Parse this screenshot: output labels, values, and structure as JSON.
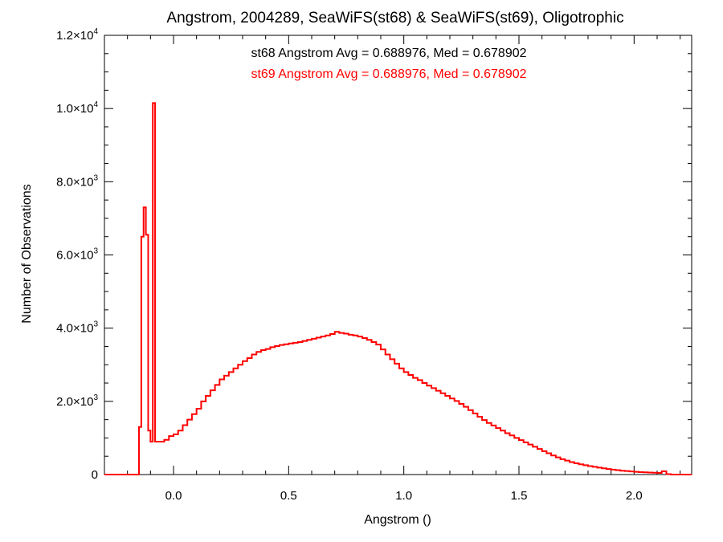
{
  "chart_data": {
    "type": "step-histogram",
    "title": "Angstrom, 2004289, SeaWiFS(st68) & SeaWiFS(st69), Oligotrophic",
    "xlabel": "Angstrom ()",
    "ylabel": "Number of Observations",
    "xlim": [
      -0.3,
      2.25
    ],
    "ylim": [
      0,
      12000
    ],
    "xticks": [
      0.0,
      0.5,
      1.0,
      1.5,
      2.0
    ],
    "xtick_labels": [
      "0.0",
      "0.5",
      "1.0",
      "1.5",
      "2.0"
    ],
    "yticks": [
      {
        "value": 0,
        "mant": "0",
        "exp": ""
      },
      {
        "value": 2000,
        "mant": "2.0×10",
        "exp": "3"
      },
      {
        "value": 4000,
        "mant": "4.0×10",
        "exp": "3"
      },
      {
        "value": 6000,
        "mant": "6.0×10",
        "exp": "3"
      },
      {
        "value": 8000,
        "mant": "8.0×10",
        "exp": "3"
      },
      {
        "value": 10000,
        "mant": "1.0×10",
        "exp": "4"
      },
      {
        "value": 12000,
        "mant": "1.2×10",
        "exp": "4"
      }
    ],
    "annotations": [
      {
        "text": "st68 Angstrom Avg = 0.688976, Med = 0.678902",
        "color": "#000000"
      },
      {
        "text": "st69 Angstrom Avg = 0.688976, Med = 0.678902",
        "color": "#ff0000"
      }
    ],
    "series": [
      {
        "color": "#ff0000",
        "bin_width": 0.01,
        "points": [
          [
            -0.3,
            0
          ],
          [
            -0.16,
            0
          ],
          [
            -0.15,
            1300
          ],
          [
            -0.14,
            6500
          ],
          [
            -0.13,
            7300
          ],
          [
            -0.12,
            6550
          ],
          [
            -0.11,
            1200
          ],
          [
            -0.1,
            900
          ],
          [
            -0.09,
            10150
          ],
          [
            -0.08,
            900
          ],
          [
            -0.06,
            900
          ],
          [
            -0.04,
            950
          ],
          [
            -0.02,
            1050
          ],
          [
            0.0,
            1100
          ],
          [
            0.02,
            1200
          ],
          [
            0.04,
            1350
          ],
          [
            0.06,
            1500
          ],
          [
            0.08,
            1650
          ],
          [
            0.1,
            1800
          ],
          [
            0.12,
            2000
          ],
          [
            0.14,
            2150
          ],
          [
            0.16,
            2300
          ],
          [
            0.18,
            2450
          ],
          [
            0.2,
            2600
          ],
          [
            0.22,
            2700
          ],
          [
            0.24,
            2800
          ],
          [
            0.26,
            2900
          ],
          [
            0.28,
            3000
          ],
          [
            0.3,
            3100
          ],
          [
            0.32,
            3180
          ],
          [
            0.34,
            3280
          ],
          [
            0.36,
            3350
          ],
          [
            0.38,
            3400
          ],
          [
            0.4,
            3430
          ],
          [
            0.42,
            3480
          ],
          [
            0.44,
            3510
          ],
          [
            0.46,
            3540
          ],
          [
            0.48,
            3560
          ],
          [
            0.5,
            3580
          ],
          [
            0.52,
            3600
          ],
          [
            0.54,
            3620
          ],
          [
            0.56,
            3650
          ],
          [
            0.58,
            3680
          ],
          [
            0.6,
            3710
          ],
          [
            0.62,
            3740
          ],
          [
            0.64,
            3770
          ],
          [
            0.66,
            3800
          ],
          [
            0.68,
            3840
          ],
          [
            0.7,
            3900
          ],
          [
            0.72,
            3870
          ],
          [
            0.74,
            3850
          ],
          [
            0.76,
            3820
          ],
          [
            0.78,
            3800
          ],
          [
            0.8,
            3770
          ],
          [
            0.82,
            3730
          ],
          [
            0.84,
            3680
          ],
          [
            0.86,
            3620
          ],
          [
            0.88,
            3550
          ],
          [
            0.9,
            3420
          ],
          [
            0.92,
            3280
          ],
          [
            0.94,
            3150
          ],
          [
            0.96,
            3030
          ],
          [
            0.98,
            2900
          ],
          [
            1.0,
            2800
          ],
          [
            1.02,
            2720
          ],
          [
            1.04,
            2640
          ],
          [
            1.06,
            2580
          ],
          [
            1.08,
            2500
          ],
          [
            1.1,
            2430
          ],
          [
            1.12,
            2360
          ],
          [
            1.14,
            2290
          ],
          [
            1.16,
            2220
          ],
          [
            1.18,
            2150
          ],
          [
            1.2,
            2080
          ],
          [
            1.22,
            2010
          ],
          [
            1.24,
            1930
          ],
          [
            1.26,
            1850
          ],
          [
            1.28,
            1760
          ],
          [
            1.3,
            1670
          ],
          [
            1.32,
            1580
          ],
          [
            1.34,
            1490
          ],
          [
            1.36,
            1410
          ],
          [
            1.38,
            1340
          ],
          [
            1.4,
            1270
          ],
          [
            1.42,
            1200
          ],
          [
            1.44,
            1130
          ],
          [
            1.46,
            1070
          ],
          [
            1.48,
            1000
          ],
          [
            1.5,
            940
          ],
          [
            1.52,
            880
          ],
          [
            1.54,
            820
          ],
          [
            1.56,
            760
          ],
          [
            1.58,
            700
          ],
          [
            1.6,
            640
          ],
          [
            1.62,
            580
          ],
          [
            1.64,
            520
          ],
          [
            1.66,
            470
          ],
          [
            1.68,
            420
          ],
          [
            1.7,
            380
          ],
          [
            1.72,
            340
          ],
          [
            1.74,
            310
          ],
          [
            1.76,
            280
          ],
          [
            1.78,
            255
          ],
          [
            1.8,
            230
          ],
          [
            1.82,
            210
          ],
          [
            1.84,
            190
          ],
          [
            1.86,
            170
          ],
          [
            1.88,
            150
          ],
          [
            1.9,
            135
          ],
          [
            1.92,
            120
          ],
          [
            1.94,
            105
          ],
          [
            1.96,
            95
          ],
          [
            1.98,
            85
          ],
          [
            2.0,
            75
          ],
          [
            2.02,
            65
          ],
          [
            2.04,
            60
          ],
          [
            2.06,
            55
          ],
          [
            2.08,
            50
          ],
          [
            2.1,
            45
          ],
          [
            2.12,
            90
          ],
          [
            2.14,
            10
          ],
          [
            2.16,
            0
          ],
          [
            2.25,
            0
          ]
        ]
      }
    ],
    "grid": false,
    "legend": "none"
  }
}
